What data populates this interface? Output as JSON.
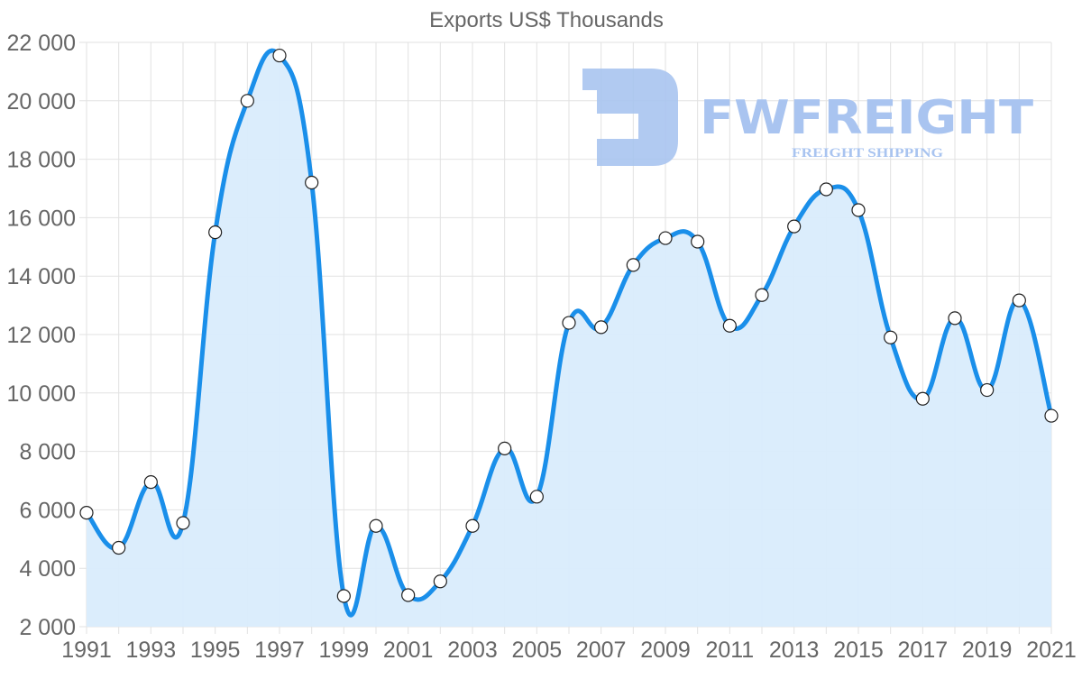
{
  "chart_data": {
    "type": "line",
    "title": "Exports US$ Thousands",
    "xlabel": "",
    "ylabel": "",
    "filled_area": true,
    "grid": true,
    "legend": null,
    "ylim": [
      2000,
      22000
    ],
    "y_ticks": [
      2000,
      4000,
      6000,
      8000,
      10000,
      12000,
      14000,
      16000,
      18000,
      20000,
      22000
    ],
    "y_tick_labels": [
      "2 000",
      "4 000",
      "6 000",
      "8 000",
      "10 000",
      "12 000",
      "14 000",
      "16 000",
      "18 000",
      "20 000",
      "22 000"
    ],
    "x_tick_labels": [
      "1991",
      "1993",
      "1995",
      "1997",
      "1999",
      "2001",
      "2003",
      "2005",
      "2007",
      "2009",
      "2011",
      "2013",
      "2015",
      "2017",
      "2019",
      "2021"
    ],
    "x": [
      1991,
      1992,
      1993,
      1994,
      1995,
      1996,
      1997,
      1998,
      1999,
      2000,
      2001,
      2002,
      2003,
      2004,
      2005,
      2006,
      2007,
      2008,
      2009,
      2010,
      2011,
      2012,
      2013,
      2014,
      2015,
      2016,
      2017,
      2018,
      2019,
      2020,
      2021
    ],
    "series": [
      {
        "name": "Exports US$ Thousands",
        "color": "#1a8fea",
        "fill_color": "#d9ecfc",
        "values": [
          5900,
          4700,
          6950,
          5550,
          15500,
          20000,
          21550,
          17200,
          3050,
          5450,
          3080,
          3550,
          5450,
          8100,
          6450,
          12400,
          12250,
          14380,
          15300,
          15180,
          12300,
          13350,
          15700,
          16970,
          16260,
          11900,
          9800,
          12560,
          10100,
          13170,
          9220
        ]
      }
    ]
  },
  "watermark": {
    "brand": "FWFREIGHT",
    "tagline": "FREIGHT SHIPPING",
    "color": "#a9c4f0"
  }
}
